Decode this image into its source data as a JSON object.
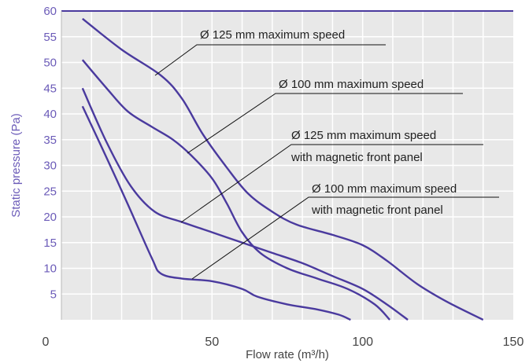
{
  "chart_data": {
    "type": "line",
    "xlabel": "Flow rate (m³/h)",
    "ylabel": "Static pressure (Pa)",
    "xlim": [
      0,
      150
    ],
    "ylim": [
      0,
      60
    ],
    "x_ticks": [
      "0",
      "50",
      "100",
      "150"
    ],
    "y_ticks": [
      "5",
      "10",
      "15",
      "20",
      "25",
      "30",
      "35",
      "40",
      "45",
      "50",
      "55",
      "60"
    ],
    "grid": true,
    "colors": {
      "line": "#4a3a9e",
      "grid": "#ffffff",
      "plot_bg": "#e8e8e8",
      "axis": "#4a3a9e",
      "annotation_line": "#111111"
    },
    "series": [
      {
        "name": "Ø 125 mm maximum speed",
        "x": [
          7,
          20,
          33,
          40,
          47,
          55,
          62,
          70,
          78,
          90,
          100,
          108,
          118,
          128,
          140
        ],
        "y": [
          58.5,
          52.5,
          47.5,
          43,
          36,
          29.5,
          24.5,
          21,
          18.5,
          16.5,
          14.5,
          11.5,
          7,
          3.5,
          0
        ]
      },
      {
        "name": "Ø 100 mm maximum speed",
        "x": [
          7,
          15,
          22,
          30,
          37,
          43,
          50,
          55,
          60,
          66,
          75,
          85,
          95,
          104,
          109
        ],
        "y": [
          50.5,
          45,
          40.5,
          37.5,
          35,
          32,
          27.5,
          22.5,
          17,
          13,
          10,
          8,
          6,
          3,
          0
        ]
      },
      {
        "name": "Ø 125 mm maximum speed\nwith magnetic front panel",
        "x": [
          7,
          15,
          23,
          31,
          40,
          50,
          60,
          70,
          80,
          90,
          100,
          108,
          115
        ],
        "y": [
          45,
          34.5,
          26,
          21,
          19,
          17,
          15,
          13,
          11,
          8.5,
          6,
          3,
          0
        ]
      },
      {
        "name": "Ø 100 mm maximum speed\nwith magnetic front panel",
        "x": [
          7,
          15,
          22,
          30,
          33,
          40,
          50,
          60,
          65,
          75,
          85,
          92,
          96
        ],
        "y": [
          41.5,
          31.5,
          22.5,
          12,
          9,
          8,
          7.5,
          6,
          4.5,
          3,
          2,
          1,
          0
        ]
      }
    ],
    "annotations": [
      {
        "label_lines": [
          "Ø 125 mm maximum speed"
        ],
        "points_to_series": 0
      },
      {
        "label_lines": [
          "Ø 100 mm maximum speed"
        ],
        "points_to_series": 1
      },
      {
        "label_lines": [
          "Ø 125 mm maximum speed",
          "with magnetic front panel"
        ],
        "points_to_series": 2
      },
      {
        "label_lines": [
          "Ø 100 mm maximum speed",
          "with magnetic front panel"
        ],
        "points_to_series": 3
      }
    ]
  }
}
